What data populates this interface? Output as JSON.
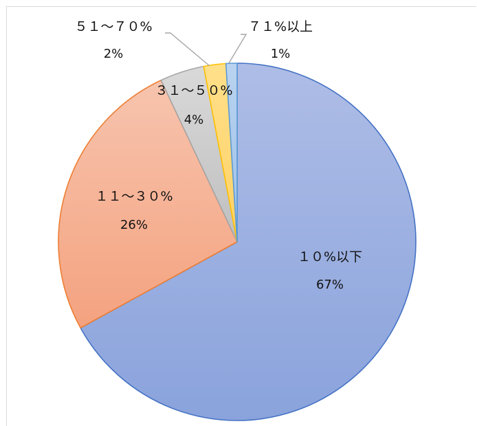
{
  "chart_data": {
    "type": "pie",
    "title": "",
    "categories": [
      "10%以下",
      "11~30%",
      "31~50%",
      "51~70%",
      "71%以上"
    ],
    "values": [
      67,
      26,
      4,
      2,
      1
    ],
    "category_labels": [
      "１０%以下",
      "１１～３０%",
      "３１～５０%",
      "５１～７０%",
      "７１%以上"
    ],
    "percent_labels": [
      "67%",
      "26%",
      "4%",
      "2%",
      "1%"
    ],
    "colors": {
      "fills": [
        [
          "#aebde6",
          "#8aa3dc"
        ],
        [
          "#f7c4ae",
          "#f4a27f"
        ],
        [
          "#d9d9d9",
          "#bfbfbf"
        ],
        [
          "#ffe08a",
          "#ffd166"
        ],
        [
          "#b9d3f0",
          "#9dc0e8"
        ]
      ],
      "strokes": [
        "#4472c4",
        "#ed7d31",
        "#a5a5a5",
        "#ffc000",
        "#5b9bd5"
      ]
    },
    "legend": "none",
    "start_angle": "12 o'clock",
    "direction": "clockwise"
  }
}
